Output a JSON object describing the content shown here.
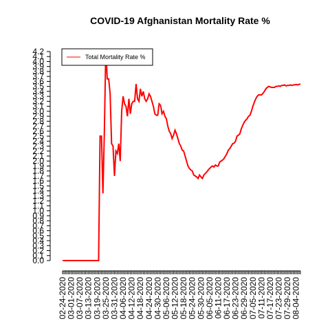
{
  "chart_data": {
    "type": "line",
    "title": "COVID-19 Afghanistan Mortality Rate %",
    "categories": [
      "02-24-2020",
      null,
      null,
      null,
      null,
      null,
      "03-01-2020",
      null,
      null,
      null,
      null,
      null,
      "03-07-2020",
      null,
      null,
      null,
      null,
      null,
      "03-13-2020",
      null,
      null,
      null,
      null,
      null,
      "03-19-2020",
      null,
      null,
      null,
      null,
      null,
      "03-25-2020",
      null,
      null,
      null,
      null,
      null,
      "03-31-2020",
      null,
      null,
      null,
      null,
      null,
      "04-06-2020",
      null,
      null,
      null,
      null,
      null,
      "04-12-2020",
      null,
      null,
      null,
      null,
      null,
      "04-18-2020",
      null,
      null,
      null,
      null,
      null,
      "04-24-2020",
      null,
      null,
      null,
      null,
      null,
      "04-30-2020",
      null,
      null,
      null,
      null,
      null,
      "05-06-2020",
      null,
      null,
      null,
      null,
      null,
      "05-12-2020",
      null,
      null,
      null,
      null,
      null,
      "05-18-2020",
      null,
      null,
      null,
      null,
      null,
      "05-24-2020",
      null,
      null,
      null,
      null,
      null,
      "05-30-2020",
      null,
      null,
      null,
      null,
      null,
      "06-05-2020",
      null,
      null,
      null,
      null,
      null,
      "06-11-2020",
      null,
      null,
      null,
      null,
      null,
      "06-17-2020",
      null,
      null,
      null,
      null,
      null,
      "06-23-2020",
      null,
      null,
      null,
      null,
      null,
      "06-29-2020",
      null,
      null,
      null,
      null,
      null,
      "07-05-2020",
      null,
      null,
      null,
      null,
      null,
      "07-11-2020",
      null,
      null,
      null,
      null,
      null,
      "07-17-2020",
      null,
      null,
      null,
      null,
      null,
      "07-23-2020",
      null,
      null,
      null,
      null,
      null,
      "07-29-2020",
      null,
      null,
      null,
      null,
      null,
      "08-04-2020",
      null,
      null,
      null
    ],
    "series": [
      {
        "name": "Total Mortality Rate %",
        "color": "#ff0000",
        "values": [
          0,
          0,
          0,
          0,
          0,
          0,
          0,
          0,
          0,
          0,
          0,
          0,
          0,
          0,
          0,
          0,
          0,
          0,
          0,
          0,
          0,
          0,
          0,
          0,
          0,
          0,
          2.5,
          2.5,
          1.35,
          2.6,
          4.25,
          3.65,
          3.65,
          3.35,
          2.35,
          2.3,
          1.7,
          2.2,
          2.15,
          2.35,
          2.0,
          3.0,
          3.3,
          3.15,
          3.1,
          2.9,
          3.25,
          2.95,
          3.15,
          3.2,
          3.2,
          3.55,
          3.25,
          3.2,
          3.45,
          3.3,
          3.4,
          3.25,
          3.2,
          3.25,
          3.35,
          3.3,
          3.2,
          3.1,
          2.95,
          2.92,
          2.92,
          3.15,
          3.12,
          2.95,
          3.0,
          2.9,
          2.85,
          2.7,
          2.6,
          2.55,
          2.45,
          2.52,
          2.62,
          2.55,
          2.45,
          2.35,
          2.3,
          2.22,
          2.2,
          2.1,
          2.0,
          1.9,
          1.85,
          1.82,
          1.8,
          1.72,
          1.7,
          1.68,
          1.65,
          1.72,
          1.68,
          1.65,
          1.72,
          1.75,
          1.78,
          1.82,
          1.85,
          1.88,
          1.9,
          1.88,
          1.92,
          1.9,
          1.9,
          1.98,
          2.0,
          2.02,
          2.05,
          2.1,
          2.15,
          2.22,
          2.25,
          2.3,
          2.35,
          2.36,
          2.4,
          2.5,
          2.52,
          2.55,
          2.65,
          2.72,
          2.78,
          2.82,
          2.85,
          2.9,
          2.92,
          3.0,
          3.1,
          3.18,
          3.25,
          3.3,
          3.33,
          3.33,
          3.33,
          3.36,
          3.4,
          3.45,
          3.48,
          3.5,
          3.49,
          3.48,
          3.48,
          3.48,
          3.5,
          3.5,
          3.51,
          3.5,
          3.52,
          3.52,
          3.53,
          3.51,
          3.52,
          3.52,
          3.53,
          3.52,
          3.53,
          3.53,
          3.54,
          3.53,
          3.54,
          3.55
        ]
      }
    ],
    "ylim": [
      0,
      4.2
    ],
    "yticks": [
      {
        "value": 0,
        "label": "0.0"
      },
      0.1,
      0.2,
      0.3,
      0.4,
      0.5,
      0.6,
      0.7,
      0.8,
      0.9,
      {
        "value": 1,
        "label": "1.0"
      },
      1.1,
      1.2,
      1.3,
      1.4,
      1.5,
      1.6,
      1.7,
      1.8,
      1.9,
      {
        "value": 2,
        "label": "2.0"
      },
      2.1,
      2.2,
      2.3,
      2.4,
      2.5,
      2.6,
      2.7,
      2.8,
      2.9,
      {
        "value": 3,
        "label": "3.0"
      },
      3.1,
      3.2,
      3.3,
      3.4,
      3.5,
      3.6,
      3.7,
      3.8,
      3.9,
      {
        "value": 4,
        "label": "4.0"
      },
      4.1,
      4.2
    ],
    "legend": "top-left"
  }
}
